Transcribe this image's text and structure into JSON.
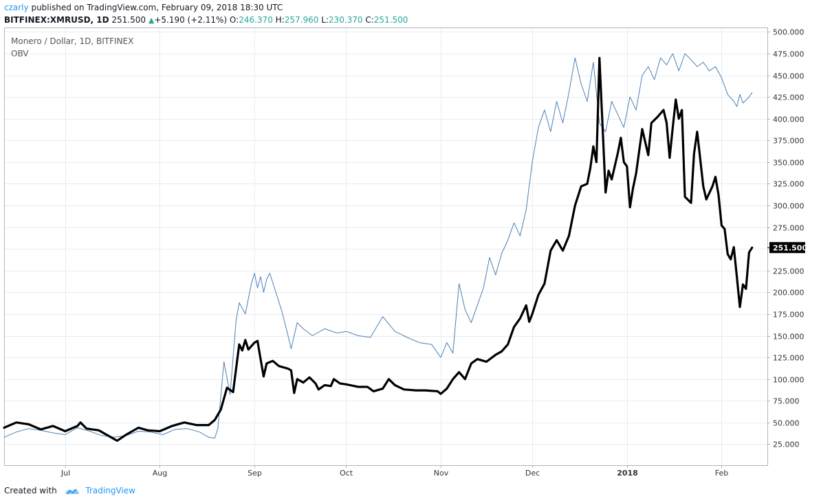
{
  "header": {
    "user": "czarly",
    "published_text": "published on TradingView.com, February 09, 2018 18:30 UTC"
  },
  "ohlc": {
    "symbol": "BITFINEX:XMRUSD, 1D",
    "price": "251.500",
    "change": "+5.190 (+2.11%)",
    "o_label": "O:",
    "o": "246.370",
    "h_label": "H:",
    "h": "257.960",
    "l_label": "L:",
    "l": "230.370",
    "c_label": "C:",
    "c": "251.500"
  },
  "legend": {
    "title": "Monero / Dollar, 1D, BITFINEX",
    "indicator": "OBV"
  },
  "footer": {
    "created_with": "Created with",
    "brand": "TradingView"
  },
  "colors": {
    "price_line": "#000000",
    "obv_line": "#4a7fb5",
    "grid": "#e6ecf2",
    "last_price_badge": "#000000"
  },
  "chart_data": {
    "type": "line",
    "title": "Monero / Dollar, 1D, BITFINEX",
    "y_axis_side": "right",
    "ylim": [
      0,
      500
    ],
    "y_ticks": [
      25,
      50,
      75,
      100,
      125,
      150,
      175,
      200,
      225,
      250,
      275,
      300,
      325,
      350,
      375,
      400,
      425,
      450,
      475,
      500
    ],
    "y_tick_labels": [
      "25.000",
      "50.000",
      "75.000",
      "100.000",
      "125.000",
      "150.000",
      "175.000",
      "200.000",
      "225.000",
      "250.000",
      "275.000",
      "300.000",
      "325.000",
      "350.000",
      "375.000",
      "400.000",
      "425.000",
      "450.000",
      "475.000",
      "500.000"
    ],
    "x_range": [
      "2017-06-11",
      "2018-02-16"
    ],
    "x_ticks": [
      {
        "date": "2017-07-01",
        "label": "Jul"
      },
      {
        "date": "2017-08-01",
        "label": "Aug"
      },
      {
        "date": "2017-09-01",
        "label": "Sep"
      },
      {
        "date": "2017-10-01",
        "label": "Oct"
      },
      {
        "date": "2017-11-01",
        "label": "Nov"
      },
      {
        "date": "2017-12-01",
        "label": "Dec"
      },
      {
        "date": "2018-01-01",
        "label": "2018"
      },
      {
        "date": "2018-02-01",
        "label": "Feb"
      }
    ],
    "last_price": 251.5,
    "last_price_label": "251.500",
    "grid": true,
    "series": [
      {
        "role": "price",
        "points": [
          [
            "2017-06-11",
            44
          ],
          [
            "2017-06-15",
            50
          ],
          [
            "2017-06-19",
            48
          ],
          [
            "2017-06-23",
            42
          ],
          [
            "2017-06-27",
            46
          ],
          [
            "2017-07-01",
            40
          ],
          [
            "2017-07-05",
            46
          ],
          [
            "2017-07-06",
            50
          ],
          [
            "2017-07-08",
            43
          ],
          [
            "2017-07-12",
            41
          ],
          [
            "2017-07-16",
            33
          ],
          [
            "2017-07-18",
            29
          ],
          [
            "2017-07-21",
            36
          ],
          [
            "2017-07-25",
            44
          ],
          [
            "2017-07-28",
            41
          ],
          [
            "2017-08-01",
            40
          ],
          [
            "2017-08-05",
            46
          ],
          [
            "2017-08-09",
            50
          ],
          [
            "2017-08-13",
            47
          ],
          [
            "2017-08-17",
            47
          ],
          [
            "2017-08-19",
            53
          ],
          [
            "2017-08-21",
            65
          ],
          [
            "2017-08-23",
            90
          ],
          [
            "2017-08-25",
            85
          ],
          [
            "2017-08-27",
            140
          ],
          [
            "2017-08-28",
            133
          ],
          [
            "2017-08-29",
            145
          ],
          [
            "2017-08-30",
            134
          ],
          [
            "2017-09-01",
            142
          ],
          [
            "2017-09-02",
            144
          ],
          [
            "2017-09-03",
            123
          ],
          [
            "2017-09-04",
            103
          ],
          [
            "2017-09-05",
            118
          ],
          [
            "2017-09-07",
            121
          ],
          [
            "2017-09-09",
            115
          ],
          [
            "2017-09-12",
            112
          ],
          [
            "2017-09-13",
            110
          ],
          [
            "2017-09-14",
            84
          ],
          [
            "2017-09-15",
            100
          ],
          [
            "2017-09-17",
            96
          ],
          [
            "2017-09-19",
            102
          ],
          [
            "2017-09-21",
            95
          ],
          [
            "2017-09-22",
            88
          ],
          [
            "2017-09-24",
            93
          ],
          [
            "2017-09-26",
            92
          ],
          [
            "2017-09-27",
            100
          ],
          [
            "2017-09-29",
            95
          ],
          [
            "2017-10-01",
            94
          ],
          [
            "2017-10-05",
            91
          ],
          [
            "2017-10-08",
            91
          ],
          [
            "2017-10-10",
            86
          ],
          [
            "2017-10-13",
            89
          ],
          [
            "2017-10-15",
            100
          ],
          [
            "2017-10-17",
            93
          ],
          [
            "2017-10-20",
            88
          ],
          [
            "2017-10-24",
            87
          ],
          [
            "2017-10-27",
            87
          ],
          [
            "2017-10-31",
            86
          ],
          [
            "2017-11-01",
            83
          ],
          [
            "2017-11-03",
            89
          ],
          [
            "2017-11-05",
            100
          ],
          [
            "2017-11-07",
            108
          ],
          [
            "2017-11-09",
            100
          ],
          [
            "2017-11-11",
            118
          ],
          [
            "2017-11-13",
            123
          ],
          [
            "2017-11-16",
            120
          ],
          [
            "2017-11-19",
            128
          ],
          [
            "2017-11-21",
            132
          ],
          [
            "2017-11-23",
            140
          ],
          [
            "2017-11-25",
            160
          ],
          [
            "2017-11-27",
            170
          ],
          [
            "2017-11-29",
            185
          ],
          [
            "2017-11-30",
            166
          ],
          [
            "2017-12-01",
            175
          ],
          [
            "2017-12-03",
            197
          ],
          [
            "2017-12-05",
            210
          ],
          [
            "2017-12-07",
            248
          ],
          [
            "2017-12-09",
            260
          ],
          [
            "2017-12-11",
            248
          ],
          [
            "2017-12-13",
            265
          ],
          [
            "2017-12-15",
            300
          ],
          [
            "2017-12-17",
            322
          ],
          [
            "2017-12-19",
            325
          ],
          [
            "2017-12-20",
            343
          ],
          [
            "2017-12-21",
            368
          ],
          [
            "2017-12-22",
            350
          ],
          [
            "2017-12-23",
            470
          ],
          [
            "2017-12-25",
            315
          ],
          [
            "2017-12-26",
            340
          ],
          [
            "2017-12-27",
            330
          ],
          [
            "2017-12-29",
            360
          ],
          [
            "2017-12-30",
            378
          ],
          [
            "2017-12-31",
            350
          ],
          [
            "2018-01-01",
            345
          ],
          [
            "2018-01-02",
            298
          ],
          [
            "2018-01-03",
            320
          ],
          [
            "2018-01-04",
            337
          ],
          [
            "2018-01-06",
            388
          ],
          [
            "2018-01-08",
            358
          ],
          [
            "2018-01-09",
            395
          ],
          [
            "2018-01-11",
            402
          ],
          [
            "2018-01-13",
            410
          ],
          [
            "2018-01-14",
            395
          ],
          [
            "2018-01-15",
            355
          ],
          [
            "2018-01-16",
            390
          ],
          [
            "2018-01-17",
            422
          ],
          [
            "2018-01-18",
            400
          ],
          [
            "2018-01-19",
            410
          ],
          [
            "2018-01-20",
            310
          ],
          [
            "2018-01-22",
            303
          ],
          [
            "2018-01-23",
            360
          ],
          [
            "2018-01-24",
            385
          ],
          [
            "2018-01-26",
            322
          ],
          [
            "2018-01-27",
            307
          ],
          [
            "2018-01-29",
            322
          ],
          [
            "2018-01-30",
            333
          ],
          [
            "2018-01-31",
            312
          ],
          [
            "2018-02-01",
            277
          ],
          [
            "2018-02-02",
            273
          ],
          [
            "2018-02-03",
            244
          ],
          [
            "2018-02-04",
            238
          ],
          [
            "2018-02-05",
            252
          ],
          [
            "2018-02-06",
            218
          ],
          [
            "2018-02-07",
            183
          ],
          [
            "2018-02-08",
            209
          ],
          [
            "2018-02-09",
            204
          ],
          [
            "2018-02-10",
            246
          ],
          [
            "2018-02-11",
            251.5
          ]
        ]
      },
      {
        "role": "obv",
        "points": [
          [
            "2017-06-11",
            33
          ],
          [
            "2017-06-15",
            39
          ],
          [
            "2017-06-19",
            43
          ],
          [
            "2017-06-23",
            41
          ],
          [
            "2017-06-27",
            38
          ],
          [
            "2017-07-01",
            36
          ],
          [
            "2017-07-05",
            44
          ],
          [
            "2017-07-09",
            40
          ],
          [
            "2017-07-13",
            35
          ],
          [
            "2017-07-17",
            33
          ],
          [
            "2017-07-21",
            35
          ],
          [
            "2017-07-25",
            40
          ],
          [
            "2017-07-29",
            39
          ],
          [
            "2017-08-02",
            36
          ],
          [
            "2017-08-06",
            42
          ],
          [
            "2017-08-10",
            43
          ],
          [
            "2017-08-14",
            39
          ],
          [
            "2017-08-17",
            33
          ],
          [
            "2017-08-19",
            32
          ],
          [
            "2017-08-20",
            43
          ],
          [
            "2017-08-22",
            120
          ],
          [
            "2017-08-24",
            82
          ],
          [
            "2017-08-26",
            168
          ],
          [
            "2017-08-27",
            188
          ],
          [
            "2017-08-29",
            175
          ],
          [
            "2017-08-31",
            210
          ],
          [
            "2017-09-01",
            222
          ],
          [
            "2017-09-02",
            205
          ],
          [
            "2017-09-03",
            218
          ],
          [
            "2017-09-04",
            200
          ],
          [
            "2017-09-05",
            215
          ],
          [
            "2017-09-06",
            222
          ],
          [
            "2017-09-08",
            200
          ],
          [
            "2017-09-10",
            178
          ],
          [
            "2017-09-12",
            150
          ],
          [
            "2017-09-13",
            135
          ],
          [
            "2017-09-15",
            165
          ],
          [
            "2017-09-17",
            158
          ],
          [
            "2017-09-20",
            150
          ],
          [
            "2017-09-24",
            158
          ],
          [
            "2017-09-28",
            153
          ],
          [
            "2017-10-01",
            155
          ],
          [
            "2017-10-05",
            150
          ],
          [
            "2017-10-09",
            148
          ],
          [
            "2017-10-13",
            172
          ],
          [
            "2017-10-17",
            155
          ],
          [
            "2017-10-21",
            148
          ],
          [
            "2017-10-25",
            142
          ],
          [
            "2017-10-29",
            140
          ],
          [
            "2017-11-01",
            125
          ],
          [
            "2017-11-03",
            142
          ],
          [
            "2017-11-05",
            130
          ],
          [
            "2017-11-07",
            210
          ],
          [
            "2017-11-09",
            180
          ],
          [
            "2017-11-11",
            165
          ],
          [
            "2017-11-13",
            185
          ],
          [
            "2017-11-15",
            205
          ],
          [
            "2017-11-17",
            240
          ],
          [
            "2017-11-19",
            220
          ],
          [
            "2017-11-21",
            245
          ],
          [
            "2017-11-23",
            260
          ],
          [
            "2017-11-25",
            280
          ],
          [
            "2017-11-27",
            265
          ],
          [
            "2017-11-29",
            295
          ],
          [
            "2017-12-01",
            350
          ],
          [
            "2017-12-03",
            390
          ],
          [
            "2017-12-05",
            410
          ],
          [
            "2017-12-07",
            385
          ],
          [
            "2017-12-09",
            420
          ],
          [
            "2017-12-11",
            395
          ],
          [
            "2017-12-13",
            430
          ],
          [
            "2017-12-15",
            470
          ],
          [
            "2017-12-17",
            440
          ],
          [
            "2017-12-19",
            420
          ],
          [
            "2017-12-21",
            465
          ],
          [
            "2017-12-23",
            395
          ],
          [
            "2017-12-25",
            385
          ],
          [
            "2017-12-27",
            420
          ],
          [
            "2017-12-29",
            405
          ],
          [
            "2017-12-31",
            390
          ],
          [
            "2018-01-02",
            425
          ],
          [
            "2018-01-04",
            410
          ],
          [
            "2018-01-06",
            450
          ],
          [
            "2018-01-08",
            460
          ],
          [
            "2018-01-10",
            445
          ],
          [
            "2018-01-12",
            470
          ],
          [
            "2018-01-14",
            462
          ],
          [
            "2018-01-16",
            475
          ],
          [
            "2018-01-18",
            455
          ],
          [
            "2018-01-20",
            475
          ],
          [
            "2018-01-22",
            468
          ],
          [
            "2018-01-24",
            460
          ],
          [
            "2018-01-26",
            465
          ],
          [
            "2018-01-28",
            455
          ],
          [
            "2018-01-30",
            460
          ],
          [
            "2018-02-01",
            447
          ],
          [
            "2018-02-03",
            428
          ],
          [
            "2018-02-05",
            420
          ],
          [
            "2018-02-06",
            414
          ],
          [
            "2018-02-07",
            428
          ],
          [
            "2018-02-08",
            418
          ],
          [
            "2018-02-10",
            425
          ],
          [
            "2018-02-11",
            430
          ]
        ]
      }
    ]
  }
}
